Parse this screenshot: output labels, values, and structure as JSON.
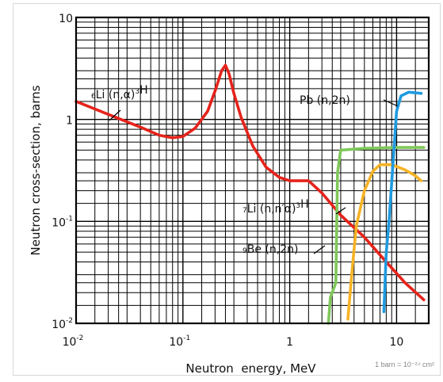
{
  "chart_data": {
    "type": "line",
    "xscale": "log",
    "yscale": "log",
    "xlim": [
      0.01,
      20
    ],
    "ylim": [
      0.01,
      10
    ],
    "grid": true,
    "xlabel": "Neutron  energy, MeV",
    "ylabel": "Neutron cross-section, barns",
    "x_ticks": [
      {
        "value": 0.01,
        "base": "10",
        "exp": "-2"
      },
      {
        "value": 0.1,
        "base": "10",
        "exp": "-1"
      },
      {
        "value": 1,
        "base": "1",
        "exp": ""
      },
      {
        "value": 10,
        "base": "10",
        "exp": ""
      }
    ],
    "y_ticks": [
      {
        "value": 10,
        "base": "10",
        "exp": ""
      },
      {
        "value": 1,
        "base": "1",
        "exp": ""
      },
      {
        "value": 0.1,
        "base": "10",
        "exp": "-1"
      },
      {
        "value": 0.01,
        "base": "10",
        "exp": "-2"
      }
    ],
    "note": "1 barn = 10⁻²⁴ cm²",
    "series": [
      {
        "name": "⁶Li (n,α)³H",
        "color": "#e5231b",
        "points": [
          [
            0.01,
            1.5
          ],
          [
            0.02,
            1.12
          ],
          [
            0.04,
            0.84
          ],
          [
            0.06,
            0.7
          ],
          [
            0.08,
            0.66
          ],
          [
            0.1,
            0.68
          ],
          [
            0.13,
            0.82
          ],
          [
            0.17,
            1.2
          ],
          [
            0.2,
            1.9
          ],
          [
            0.23,
            3.0
          ],
          [
            0.25,
            3.4
          ],
          [
            0.27,
            2.8
          ],
          [
            0.3,
            1.8
          ],
          [
            0.35,
            1.05
          ],
          [
            0.45,
            0.55
          ],
          [
            0.6,
            0.34
          ],
          [
            0.8,
            0.27
          ],
          [
            1.0,
            0.25
          ],
          [
            1.5,
            0.25
          ],
          [
            2.0,
            0.19
          ],
          [
            3.0,
            0.115
          ],
          [
            5.0,
            0.07
          ],
          [
            8.0,
            0.04
          ],
          [
            12.0,
            0.025
          ],
          [
            18.0,
            0.017
          ]
        ]
      },
      {
        "name": "⁷Li (n,n′α)³H",
        "color": "#f6b325",
        "points": [
          [
            3.5,
            0.011
          ],
          [
            3.8,
            0.03
          ],
          [
            4.2,
            0.09
          ],
          [
            5.0,
            0.2
          ],
          [
            6.0,
            0.31
          ],
          [
            7.0,
            0.36
          ],
          [
            9.0,
            0.36
          ],
          [
            12.0,
            0.32
          ],
          [
            15.0,
            0.28
          ],
          [
            17.0,
            0.25
          ]
        ]
      },
      {
        "name": "⁹Be (n,2n)",
        "color": "#7fc85a",
        "points": [
          [
            2.3,
            0.01
          ],
          [
            2.4,
            0.018
          ],
          [
            2.7,
            0.025
          ],
          [
            2.8,
            0.3
          ],
          [
            3.0,
            0.5
          ],
          [
            5.0,
            0.52
          ],
          [
            10.0,
            0.53
          ],
          [
            18.0,
            0.53
          ]
        ]
      },
      {
        "name": "Pb (n,2n)",
        "color": "#1f9be0",
        "points": [
          [
            7.6,
            0.013
          ],
          [
            8.0,
            0.05
          ],
          [
            8.5,
            0.1
          ],
          [
            9.3,
            0.4
          ],
          [
            10.0,
            1.2
          ],
          [
            11.0,
            1.7
          ],
          [
            13.0,
            1.85
          ],
          [
            17.0,
            1.8
          ]
        ]
      }
    ],
    "annotations": [
      {
        "series": 0,
        "label": "⁶Li (n,α)³H"
      },
      {
        "series": 1,
        "label": "⁷Li (n,n′α)³H"
      },
      {
        "series": 2,
        "label": "⁹Be (n,2n)"
      },
      {
        "series": 3,
        "label": "Pb (n,2n)"
      }
    ]
  }
}
